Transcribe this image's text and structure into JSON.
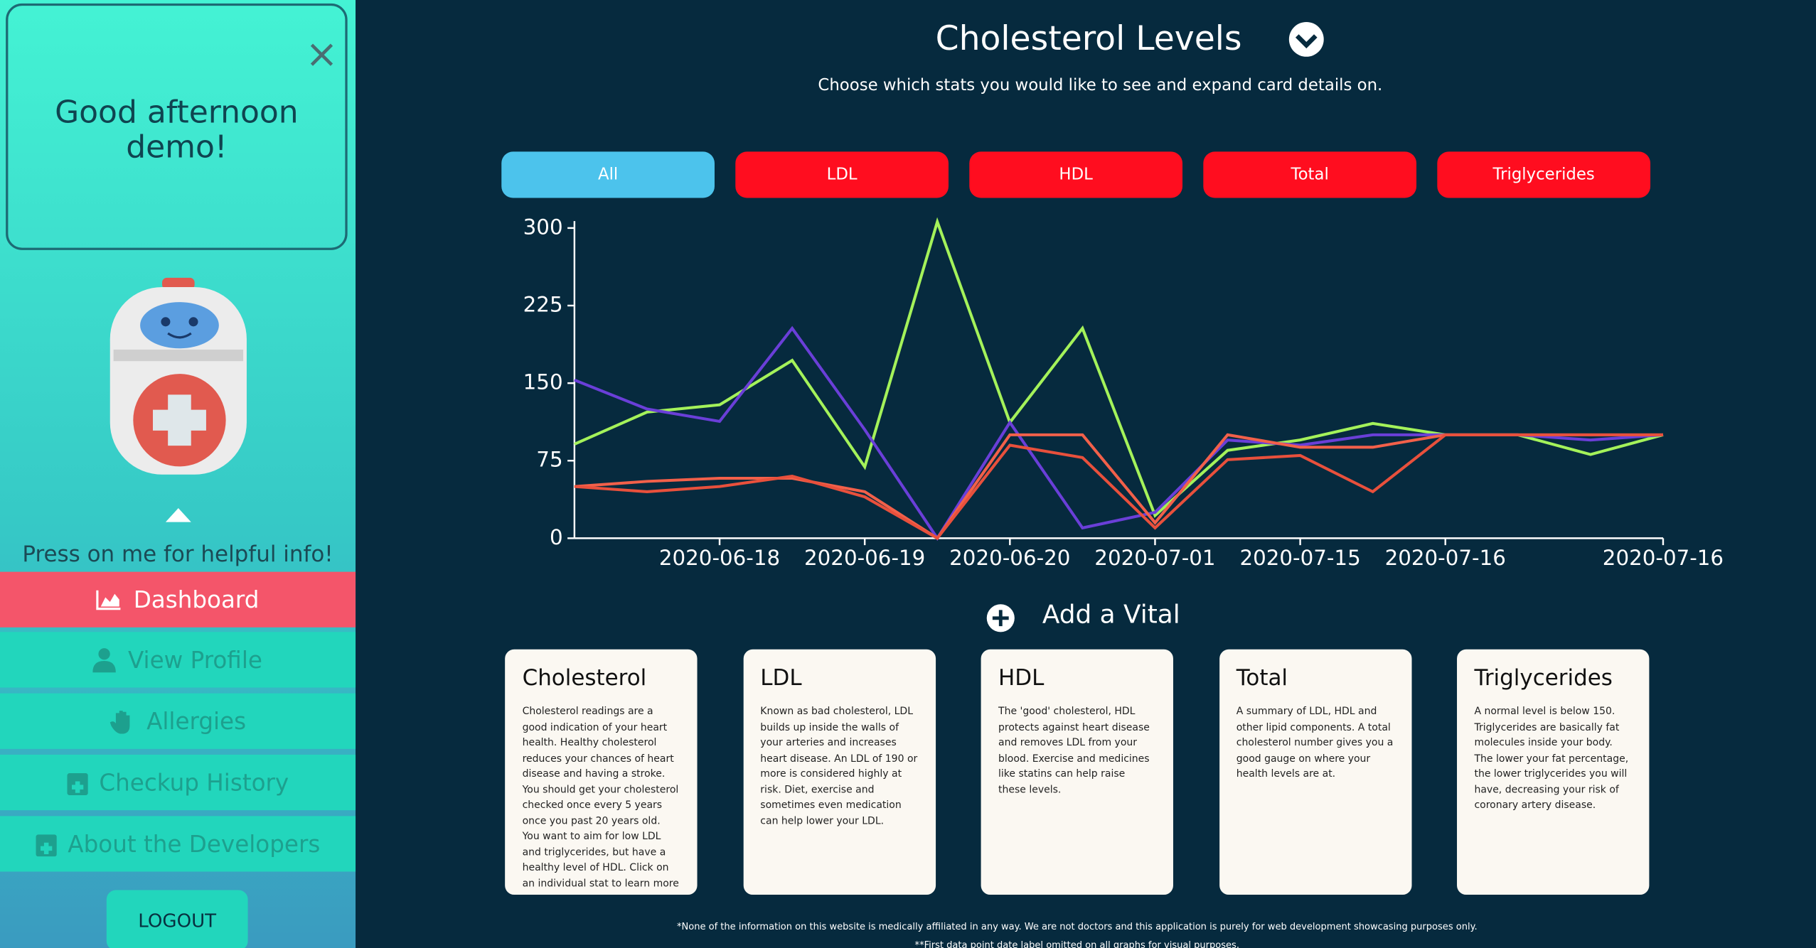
{
  "sidebar": {
    "greeting": "Good afternoon demo!",
    "close": "×",
    "help": "Press on me for helpful info!",
    "nav": [
      "Dashboard",
      "View Profile",
      "Allergies",
      "Checkup History",
      "About the Developers"
    ],
    "logout": "LOGOUT"
  },
  "header": {
    "title": "Cholesterol Levels",
    "subtitle": "Choose which stats you would like to see and expand card details on."
  },
  "filters": [
    "All",
    "LDL",
    "HDL",
    "Total",
    "Triglycerides"
  ],
  "chart_data": {
    "type": "line",
    "categories": [
      null,
      null,
      "2020-06-18",
      null,
      "2020-06-19",
      null,
      "2020-06-20",
      null,
      "2020-07-01",
      null,
      "2020-07-15",
      null,
      "2020-07-16",
      null,
      null,
      "2020-07-16"
    ],
    "series": [
      {
        "color": "#a4f25a",
        "values": [
          91,
          122,
          129,
          172,
          69,
          306,
          112,
          203,
          22,
          85,
          95,
          111,
          100,
          100,
          81,
          100
        ]
      },
      {
        "color": "#6a3fd8",
        "values": [
          153,
          125,
          113,
          203,
          105,
          0,
          112,
          10,
          25,
          95,
          90,
          100,
          100,
          100,
          95,
          100
        ]
      },
      {
        "color": "#f2604a",
        "values": [
          50,
          55,
          58,
          58,
          45,
          0,
          100,
          100,
          15,
          100,
          88,
          88,
          100,
          100,
          100,
          100
        ]
      },
      {
        "color": "#e8503c",
        "values": [
          50,
          45,
          50,
          60,
          40,
          0,
          90,
          78,
          10,
          76,
          80,
          45,
          100,
          100,
          100,
          100
        ]
      }
    ],
    "ylim": [
      0,
      300
    ],
    "yticks": [
      0,
      75,
      150,
      225,
      300
    ]
  },
  "add_vital": "Add a Vital",
  "cards": [
    {
      "title": "Cholesterol",
      "text": "Cholesterol readings are a good indication of your heart health. Healthy cholesterol reduces your chances of heart disease and having a stroke. You should get your cholesterol checked once every 5 years once you past 20 years old. You want to aim for low LDL and triglycerides, but have a healthy level of HDL. Click on an individual stat to learn more"
    },
    {
      "title": "LDL",
      "text": "Known as bad cholesterol, LDL builds up inside the walls of your arteries and increases heart disease. An LDL of 190 or more is considered highly at risk. Diet, exercise and sometimes even medication can help lower your LDL."
    },
    {
      "title": "HDL",
      "text": "The 'good' cholesterol, HDL protects against heart disease and removes LDL from your blood. Exercise and medicines like statins can help raise these levels."
    },
    {
      "title": "Total",
      "text": "A summary of LDL, HDL and other lipid components. A total cholesterol number gives you a good gauge on where your health levels are at."
    },
    {
      "title": "Triglycerides",
      "text": "A normal level is below 150. Triglycerides are basically fat molecules inside your body. The lower your fat percentage, the lower triglycerides you will have, decreasing your risk of coronary artery disease."
    }
  ],
  "footer": [
    "*None of the information on this website is medically affiliated in any way. We are not doctors and this application is purely for web development showcasing purposes only.",
    "**First data point date label omitted on all graphs for visual purposes."
  ]
}
